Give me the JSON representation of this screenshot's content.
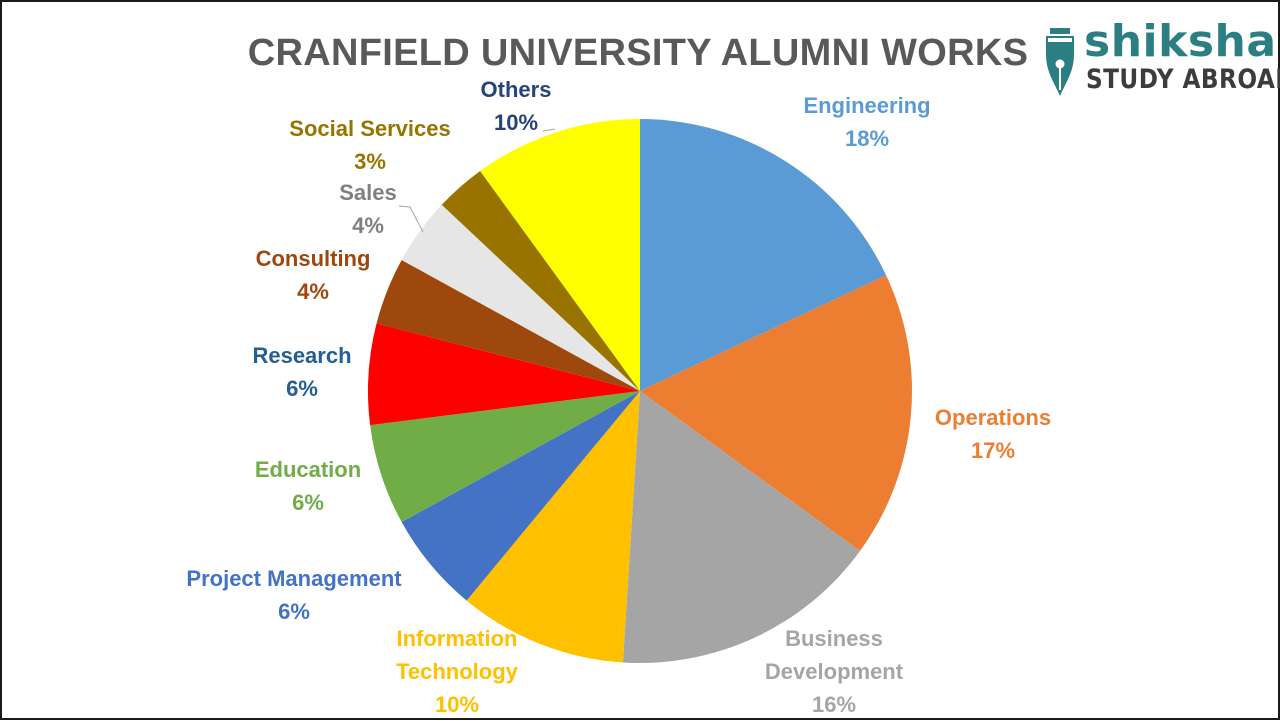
{
  "logo": {
    "brand": "shiksha",
    "tagline": "STUDY ABROAD",
    "icon": "fountain-pen-nib-icon",
    "colors": {
      "brand": "#2b7f82",
      "tagline": "#3c3c3c"
    }
  },
  "chart_data": {
    "type": "pie",
    "title": "CRANFIELD UNIVERSITY ALUMNI WORKS",
    "start_angle": "12 o'clock, clockwise",
    "slices": [
      {
        "label": "Engineering",
        "value": 18,
        "value_label": "18%",
        "color": "#5b9bd5"
      },
      {
        "label": "Operations",
        "value": 17,
        "value_label": "17%",
        "color": "#ed7d31"
      },
      {
        "label": "Business Development",
        "value": 16,
        "value_label": "16%",
        "color": "#a5a5a5"
      },
      {
        "label": "Information Technology",
        "value": 10,
        "value_label": "10%",
        "color": "#ffc000"
      },
      {
        "label": "Project Management",
        "value": 6,
        "value_label": "6%",
        "color": "#4472c4"
      },
      {
        "label": "Education",
        "value": 6,
        "value_label": "6%",
        "color": "#70ad47"
      },
      {
        "label": "Research",
        "value": 6,
        "value_label": "6%",
        "color": "#ff0000"
      },
      {
        "label": "Consulting",
        "value": 4,
        "value_label": "4%",
        "color": "#9e480e"
      },
      {
        "label": "Sales",
        "value": 4,
        "value_label": "4%",
        "color": "#e7e6e6"
      },
      {
        "label": "Social Services",
        "value": 3,
        "value_label": "3%",
        "color": "#997300"
      },
      {
        "label": "Others",
        "value": 10,
        "value_label": "10%",
        "color": "#ffff00"
      }
    ],
    "label_colors": [
      "#5b9bd5",
      "#ed7d31",
      "#a5a5a5",
      "#ffc000",
      "#4472c4",
      "#70ad47",
      "#255e91",
      "#9e480e",
      "#7f7f7f",
      "#997300",
      "#264478"
    ],
    "legend": "none (category labels placed outside slices)"
  }
}
